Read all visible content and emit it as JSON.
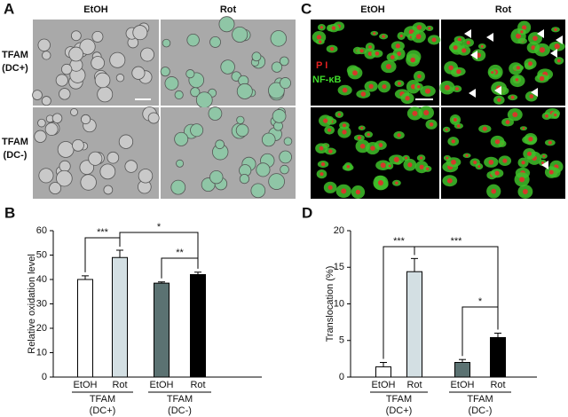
{
  "panels": {
    "a": {
      "label": "A",
      "columns": [
        "EtOH",
        "Rot"
      ],
      "rows": [
        [
          "TFAM",
          "(DC+)"
        ],
        [
          "TFAM",
          "(DC-)"
        ]
      ]
    },
    "c": {
      "label": "C",
      "columns": [
        "EtOH",
        "Rot"
      ],
      "stains": [
        "P I",
        "NF-κB"
      ]
    }
  },
  "chart_data": [
    {
      "type": "bar",
      "panel_label": "B",
      "ylabel": "Relative oxidation level",
      "categories": [
        "EtOH",
        "Rot",
        "EtOH",
        "Rot"
      ],
      "values": [
        40,
        49,
        38.5,
        42
      ],
      "errors": [
        1.5,
        3,
        0.5,
        1
      ],
      "colors": [
        "#ffffff",
        "#d3dfe3",
        "#5b7272",
        "#000000"
      ],
      "groups": [
        [
          "TFAM",
          "(DC+)"
        ],
        [
          "TFAM",
          "(DC-)"
        ]
      ],
      "annotations": [
        "***",
        "*",
        "**"
      ],
      "ylim": [
        0,
        60
      ],
      "yticks": [
        0,
        10,
        20,
        30,
        40,
        50,
        60
      ]
    },
    {
      "type": "bar",
      "panel_label": "D",
      "ylabel": "Translocation (%)",
      "categories": [
        "EtOH",
        "Rot",
        "EtOH",
        "Rot"
      ],
      "values": [
        1.4,
        14.4,
        2.0,
        5.4
      ],
      "errors": [
        0.6,
        1.8,
        0.4,
        0.6
      ],
      "colors": [
        "#ffffff",
        "#d3dfe3",
        "#5b7272",
        "#000000"
      ],
      "groups": [
        [
          "TFAM",
          "(DC+)"
        ],
        [
          "TFAM",
          "(DC-)"
        ]
      ],
      "annotations": [
        "***",
        "***",
        "*"
      ],
      "ylim": [
        0,
        20
      ],
      "yticks": [
        0,
        5,
        10,
        15,
        20
      ]
    }
  ]
}
